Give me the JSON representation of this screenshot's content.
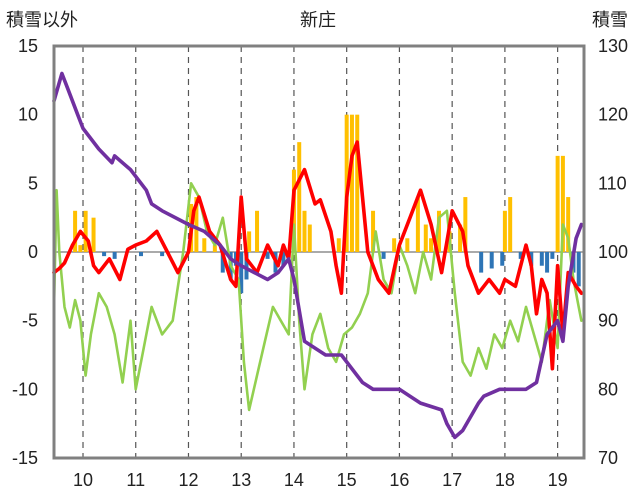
{
  "chart_data": {
    "type": "line",
    "title": "新庄",
    "ylabel_left": "積雪以外",
    "ylabel_right": "積雪",
    "x_ticks": [
      "10",
      "11",
      "12",
      "13",
      "14",
      "15",
      "16",
      "17",
      "18",
      "19"
    ],
    "xlim": [
      9.45,
      19.5
    ],
    "ylim_left": [
      -15,
      15
    ],
    "ylim_right": [
      70,
      130
    ],
    "yticks_left": [
      "15",
      "10",
      "5",
      "0",
      "-5",
      "-10",
      "-15"
    ],
    "yticks_right": [
      "130",
      "120",
      "110",
      "100",
      "90",
      "80",
      "70"
    ],
    "grid": "vertical dashed",
    "colors": {
      "bars_positive": "#FFC000",
      "bars_negative": "#2E75B6",
      "red_line": "#FF0000",
      "green_line": "#92D050",
      "purple_line": "#7030A0",
      "frame": "#808080"
    },
    "series": [
      {
        "axis": "right",
        "color": "#7030A0",
        "x": [
          9.45,
          9.6,
          9.7,
          9.9,
          10.0,
          10.3,
          10.55,
          10.6,
          10.9,
          11.2,
          11.3,
          11.5,
          12.0,
          12.3,
          12.6,
          12.8,
          13.0,
          13.5,
          13.7,
          13.9,
          14.0,
          14.2,
          14.4,
          14.6,
          14.9,
          15.2,
          15.3,
          15.5,
          15.7,
          16.0,
          16.2,
          16.4,
          16.8,
          16.9,
          17.05,
          17.2,
          17.5,
          17.6,
          17.9,
          18.2,
          18.4,
          18.6,
          18.8,
          19.0,
          19.1,
          19.2,
          19.35,
          19.45
        ],
        "values": [
          122,
          126,
          124,
          120,
          118,
          115,
          113,
          114,
          112,
          109,
          107,
          106,
          104,
          103,
          101,
          99,
          98,
          96,
          97,
          99,
          96,
          87,
          86,
          85,
          85,
          82,
          81,
          80,
          80,
          80,
          79,
          78,
          77,
          75,
          73,
          74,
          78,
          79,
          80,
          80,
          80,
          81,
          88,
          90,
          87,
          95,
          102,
          104
        ]
      },
      {
        "axis": "left",
        "color": "#FF0000",
        "x": [
          9.45,
          9.55,
          9.65,
          9.8,
          9.95,
          10.1,
          10.2,
          10.3,
          10.5,
          10.7,
          10.85,
          11.0,
          11.2,
          11.4,
          11.6,
          11.8,
          12.0,
          12.1,
          12.2,
          12.4,
          12.6,
          12.8,
          12.9,
          13.0,
          13.1,
          13.2,
          13.3,
          13.5,
          13.7,
          13.8,
          13.9,
          14.0,
          14.2,
          14.4,
          14.5,
          14.7,
          14.8,
          14.9,
          15.0,
          15.1,
          15.2,
          15.3,
          15.4,
          15.6,
          15.8,
          16.0,
          16.2,
          16.4,
          16.6,
          16.8,
          17.0,
          17.2,
          17.3,
          17.5,
          17.7,
          17.9,
          18.0,
          18.2,
          18.4,
          18.5,
          18.6,
          18.7,
          18.8,
          18.9,
          19.0,
          19.1,
          19.2,
          19.35,
          19.45
        ],
        "values": [
          -1.5,
          -1.2,
          -0.8,
          0.5,
          1.5,
          0.8,
          -1.0,
          -1.5,
          -0.5,
          -2.0,
          0.2,
          0.5,
          0.8,
          1.5,
          0.0,
          -1.5,
          0.0,
          3.0,
          4.0,
          1.5,
          0.5,
          -2.0,
          -2.5,
          4.0,
          -0.5,
          -1.0,
          -1.5,
          0.5,
          -1.0,
          0.5,
          -0.5,
          4.5,
          6.0,
          3.5,
          3.8,
          1.5,
          -1.0,
          -3.0,
          4.0,
          7.0,
          8.0,
          4.0,
          0.0,
          -2.0,
          -3.0,
          0.5,
          2.5,
          4.5,
          2.0,
          -1.5,
          3.0,
          1.5,
          -1.0,
          -3.0,
          -2.0,
          -3.0,
          -2.0,
          -2.5,
          0.5,
          -1.0,
          -4.5,
          -2.0,
          -3.0,
          -8.5,
          -1.0,
          -6.0,
          -1.5,
          -2.5,
          -3.0
        ]
      },
      {
        "axis": "left",
        "color": "#92D050",
        "x": [
          9.45,
          9.5,
          9.55,
          9.65,
          9.75,
          9.85,
          9.95,
          10.05,
          10.15,
          10.3,
          10.45,
          10.6,
          10.75,
          10.9,
          11.0,
          11.15,
          11.3,
          11.5,
          11.7,
          11.9,
          12.05,
          12.2,
          12.35,
          12.5,
          12.65,
          12.8,
          12.95,
          13.05,
          13.15,
          13.3,
          13.45,
          13.6,
          13.75,
          13.9,
          14.0,
          14.1,
          14.2,
          14.35,
          14.5,
          14.65,
          14.8,
          14.95,
          15.1,
          15.25,
          15.4,
          15.55,
          15.7,
          15.85,
          16.0,
          16.15,
          16.3,
          16.45,
          16.6,
          16.75,
          16.9,
          17.05,
          17.2,
          17.35,
          17.5,
          17.65,
          17.8,
          17.95,
          18.1,
          18.25,
          18.4,
          18.55,
          18.7,
          18.85,
          19.0,
          19.1,
          19.2,
          19.3,
          19.4,
          19.45
        ],
        "values": [
          -4.0,
          4.5,
          0.0,
          -4.0,
          -5.5,
          -3.5,
          -5.0,
          -9.0,
          -6.0,
          -3.0,
          -4.0,
          -6.0,
          -9.5,
          -5.0,
          -10.0,
          -7.0,
          -4.0,
          -6.0,
          -5.0,
          0.0,
          5.0,
          4.0,
          1.5,
          0.5,
          2.5,
          -1.0,
          -2.0,
          -8.0,
          -11.5,
          -9.0,
          -6.5,
          -4.0,
          -5.0,
          -6.0,
          2.0,
          -5.0,
          -10.0,
          -6.0,
          -4.5,
          -7.0,
          -8.0,
          -6.0,
          -5.5,
          -4.5,
          -3.0,
          1.5,
          -2.0,
          -3.0,
          0.5,
          -1.0,
          -3.0,
          0.0,
          -2.0,
          2.5,
          3.0,
          -3.0,
          -8.0,
          -9.0,
          -7.0,
          -8.5,
          -6.0,
          -7.0,
          -5.0,
          -6.5,
          -4.0,
          -6.0,
          -8.0,
          -3.5,
          -7.0,
          2.0,
          1.0,
          -2.0,
          -4.0,
          -5.0
        ]
      }
    ],
    "bars": {
      "axis": "left",
      "x": [
        9.85,
        9.95,
        10.05,
        10.2,
        10.4,
        10.6,
        11.1,
        11.5,
        12.05,
        12.15,
        12.3,
        12.5,
        12.65,
        12.8,
        12.9,
        13.0,
        13.1,
        13.15,
        13.3,
        13.5,
        13.65,
        13.8,
        14.0,
        14.1,
        14.2,
        14.3,
        14.85,
        15.0,
        15.1,
        15.2,
        15.5,
        15.7,
        15.9,
        16.15,
        16.35,
        16.5,
        16.6,
        16.75,
        16.95,
        17.15,
        17.25,
        17.55,
        17.75,
        17.95,
        18.0,
        18.1,
        18.3,
        18.5,
        18.7,
        18.8,
        18.9,
        19.0,
        19.1,
        19.2,
        19.3,
        19.4
      ],
      "values": [
        3,
        0.5,
        3,
        2.5,
        -0.3,
        -0.5,
        -0.3,
        -0.3,
        3.5,
        4,
        1,
        0.5,
        -1.5,
        -2,
        -1,
        -3,
        -2,
        1.5,
        3,
        -0.5,
        -1.5,
        -1,
        6,
        8,
        3,
        2,
        1,
        10,
        10,
        10,
        3,
        -0.5,
        1,
        1,
        4,
        2,
        1,
        3,
        1.5,
        2,
        4,
        -1.5,
        -1.2,
        -1,
        3,
        4,
        -0.5,
        -1,
        -1,
        -1.5,
        -0.5,
        7,
        7,
        4,
        -1.5,
        -2.5
      ]
    }
  }
}
